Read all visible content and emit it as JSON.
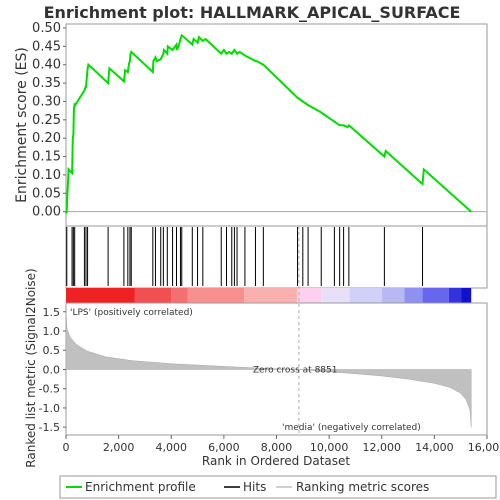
{
  "chart_data": {
    "type": "line",
    "title": "Enrichment plot: HALLMARK_APICAL_SURFACE",
    "top_panel": {
      "ylabel": "Enrichment score (ES)",
      "ylim": [
        -0.02,
        0.5
      ],
      "yticks": [
        "0.00",
        "0.05",
        "0.10",
        "0.15",
        "0.20",
        "0.25",
        "0.30",
        "0.35",
        "0.40",
        "0.45",
        "0.50"
      ],
      "ytick_values": [
        0.0,
        0.05,
        0.1,
        0.15,
        0.2,
        0.25,
        0.3,
        0.35,
        0.4,
        0.45,
        0.5
      ],
      "series": [
        {
          "name": "Enrichment profile",
          "color": "#00dd00",
          "x": [
            0,
            20,
            100,
            230,
            260,
            280,
            300,
            330,
            350,
            700,
            750,
            760,
            820,
            850,
            1600,
            1650,
            2200,
            2250,
            2350,
            2400,
            2430,
            2450,
            2480,
            3300,
            3320,
            3400,
            3450,
            3600,
            3700,
            3720,
            3850,
            3870,
            4050,
            4200,
            4220,
            4300,
            4350,
            4400,
            4800,
            4850,
            5000,
            5050,
            5200,
            5300,
            5900,
            6000,
            6100,
            6200,
            6300,
            6400,
            6500,
            6600,
            6800,
            7200,
            7250,
            7500,
            8800,
            9000,
            9200,
            9700,
            10200,
            10400,
            10550,
            10700,
            10750,
            12100,
            12150,
            13550,
            13600,
            15400
          ],
          "y": [
            0.0,
            -0.005,
            0.115,
            0.105,
            0.2,
            0.21,
            0.28,
            0.295,
            0.29,
            0.33,
            0.34,
            0.34,
            0.39,
            0.4,
            0.35,
            0.39,
            0.355,
            0.385,
            0.38,
            0.405,
            0.41,
            0.43,
            0.435,
            0.38,
            0.41,
            0.42,
            0.41,
            0.415,
            0.43,
            0.44,
            0.43,
            0.45,
            0.44,
            0.455,
            0.44,
            0.455,
            0.47,
            0.48,
            0.455,
            0.47,
            0.46,
            0.475,
            0.465,
            0.47,
            0.43,
            0.44,
            0.43,
            0.435,
            0.43,
            0.44,
            0.43,
            0.435,
            0.425,
            0.41,
            0.41,
            0.4,
            0.31,
            0.3,
            0.29,
            0.27,
            0.245,
            0.235,
            0.235,
            0.23,
            0.235,
            0.15,
            0.165,
            0.075,
            0.115,
            0.0
          ]
        }
      ]
    },
    "hits": [
      30,
      230,
      280,
      330,
      700,
      760,
      820,
      1600,
      2200,
      2350,
      2430,
      2480,
      3300,
      3400,
      3600,
      3700,
      3850,
      4050,
      4200,
      4350,
      4400,
      4800,
      5000,
      5200,
      5900,
      6100,
      6300,
      6400,
      6500,
      6800,
      7200,
      7500,
      8800,
      9000,
      9200,
      9700,
      10200,
      10400,
      10550,
      10750,
      12100,
      13550
    ],
    "rank_bar_colors": [
      "#ee2222",
      "#f05050",
      "#f47070",
      "#f89090",
      "#fbb0b0",
      "#fdd0f0",
      "#e8e0f8",
      "#d0d0f8",
      "#b8b8f4",
      "#9090f0",
      "#6666ee",
      "#3333dd",
      "#1111cc"
    ],
    "bottom_panel": {
      "ylabel": "Ranked list metric (Signal2Noise)",
      "xlabel": "Rank in Ordered Dataset",
      "ylim": [
        -1.6,
        1.65
      ],
      "yticks": [
        "-1.5",
        "-1.0",
        "-0.5",
        "0.0",
        "0.5",
        "1.0",
        "1.5"
      ],
      "ytick_values": [
        -1.5,
        -1.0,
        -0.5,
        0.0,
        0.5,
        1.0,
        1.5
      ],
      "xlim": [
        0,
        16000
      ],
      "xticks": [
        "0",
        "2,000",
        "4,000",
        "6,000",
        "8,000",
        "10,000",
        "12,000",
        "14,000",
        "16,000"
      ],
      "xtick_values": [
        0,
        2000,
        4000,
        6000,
        8000,
        10000,
        12000,
        14000,
        16000
      ],
      "metric_x": [
        0,
        40,
        150,
        400,
        800,
        1500,
        2500,
        4000,
        6000,
        7500,
        8851,
        10000,
        11000,
        12000,
        13000,
        14000,
        14600,
        15000,
        15200,
        15350,
        15400
      ],
      "metric_y": [
        1.5,
        1.05,
        0.85,
        0.65,
        0.48,
        0.33,
        0.23,
        0.15,
        0.08,
        0.03,
        0.0,
        -0.06,
        -0.11,
        -0.17,
        -0.25,
        -0.36,
        -0.47,
        -0.62,
        -0.78,
        -1.05,
        -1.5
      ],
      "fill_color": "#c0c0c0",
      "zero_cross_label": "Zero cross at 8851",
      "zero_cross_x": 8851,
      "positive_label": "'LPS' (positively correlated)",
      "negative_label": "'media' (negatively correlated)",
      "positive_color": "#cc0000",
      "negative_color": "#0000cc"
    },
    "legend": {
      "placement": "bottom",
      "items": [
        {
          "label": "Enrichment profile",
          "color": "#00dd00",
          "style": "line"
        },
        {
          "label": "Hits",
          "color": "#000000",
          "style": "line"
        },
        {
          "label": "Ranking metric scores",
          "color": "#c0c0c0",
          "style": "line"
        }
      ]
    }
  }
}
